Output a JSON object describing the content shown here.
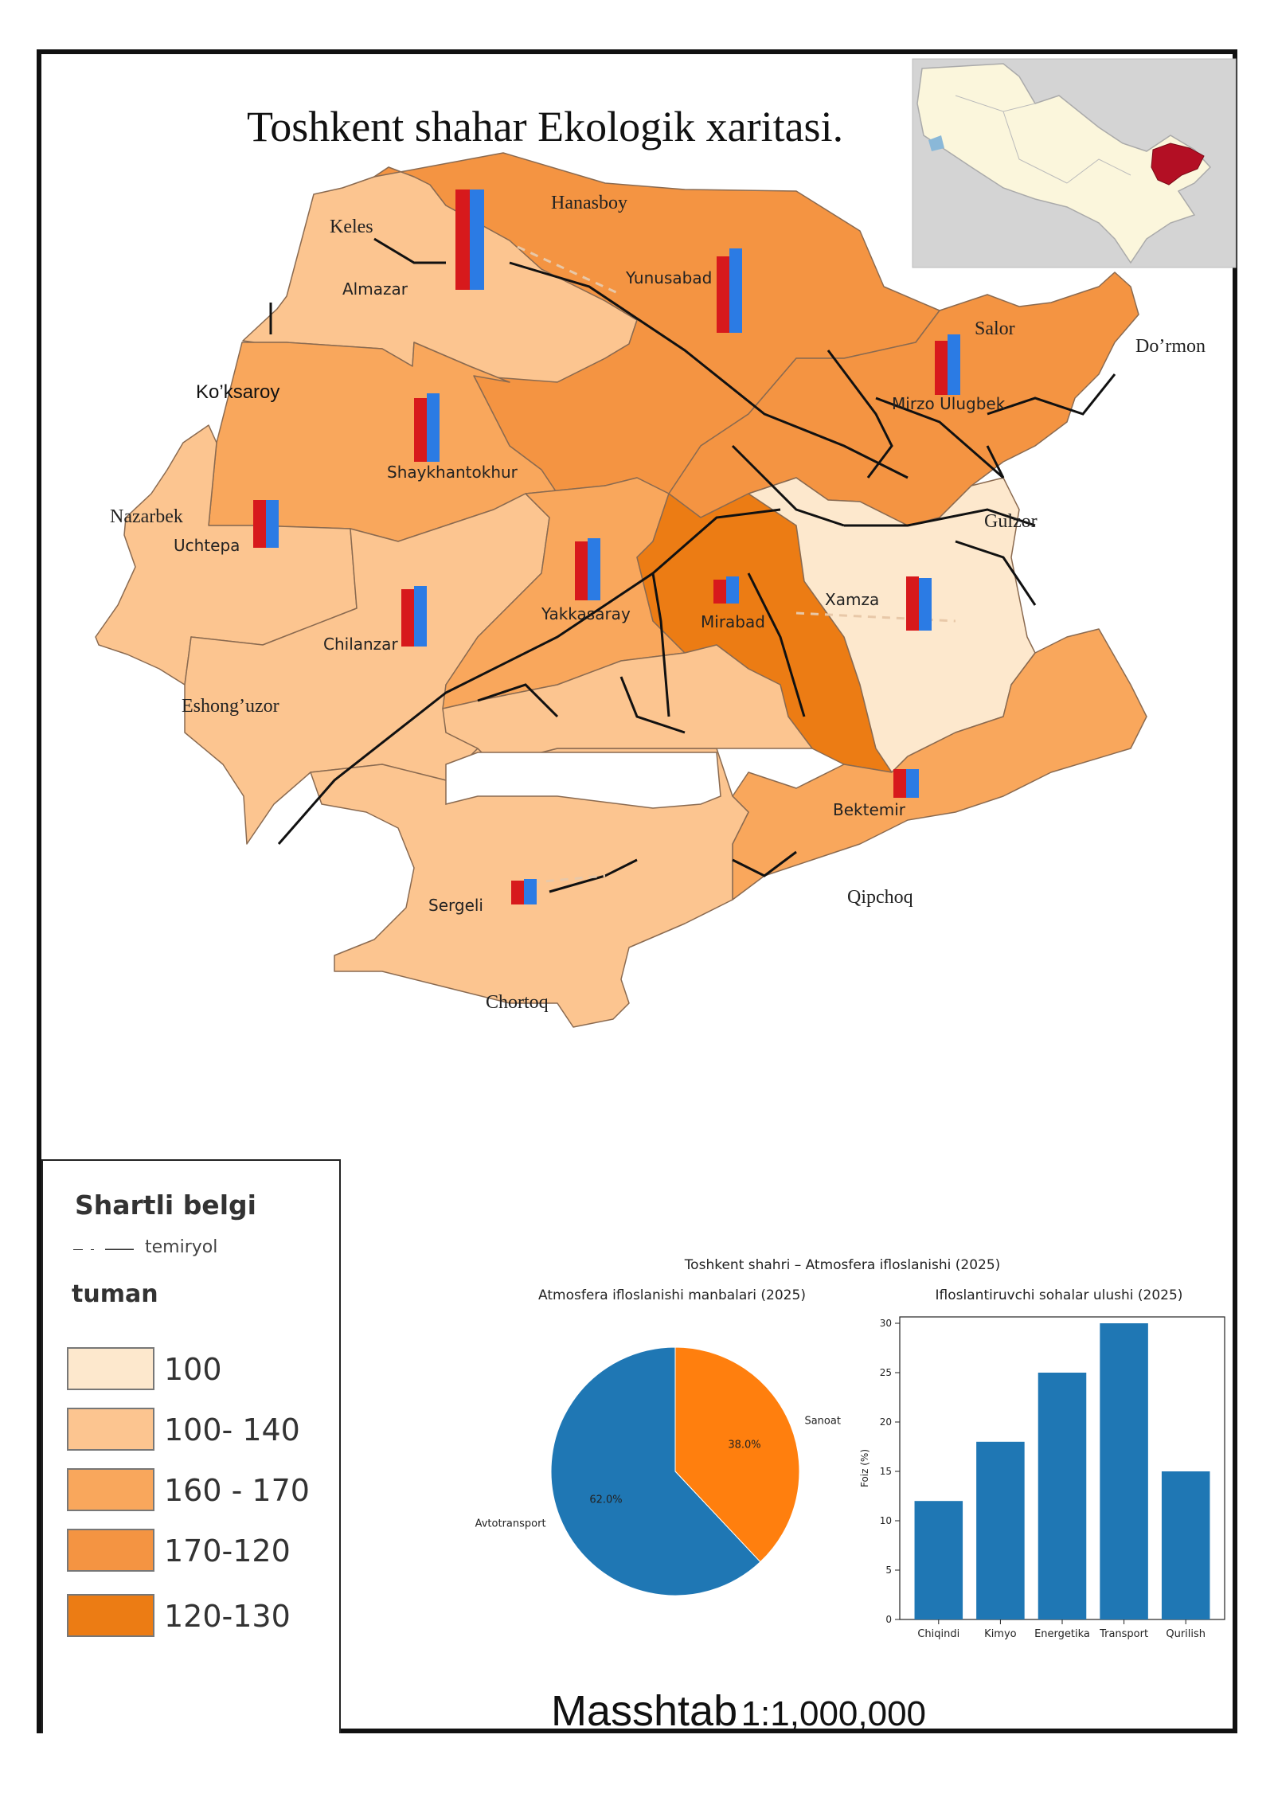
{
  "title": "Toshkent shahar Ekologik  xaritasi.",
  "colors": {
    "class_100": "#fde8cd",
    "class_100_140": "#fcc590",
    "class_160_170": "#f9a75c",
    "class_170_120": "#f49442",
    "class_120_130": "#ec7c14",
    "bar_red": "#d7191c",
    "bar_blue": "#2b7be4",
    "chart_blue": "#1f77b4",
    "chart_orange": "#ff7f0e",
    "inset_highlight": "#b30f24"
  },
  "districts": [
    {
      "id": "almazar",
      "label": "Almazar",
      "class": "100_140"
    },
    {
      "id": "yunusabad",
      "label": "Yunusabad",
      "class": "170_120"
    },
    {
      "id": "mirzo_ulugbek",
      "label": "Mirzo Ulugbek",
      "class": "170_120"
    },
    {
      "id": "shaykhantokhur",
      "label": "Shaykhantokhur",
      "class": "160_170"
    },
    {
      "id": "uchtepa",
      "label": "Uchtepa",
      "class": "100_140"
    },
    {
      "id": "chilanzar",
      "label": "Chilanzar",
      "class": "100_140"
    },
    {
      "id": "yakkasaray",
      "label": "Yakkasaray",
      "class": "160_170"
    },
    {
      "id": "mirabad",
      "label": "Mirabad",
      "class": "120_130"
    },
    {
      "id": "xamza",
      "label": "Xamza",
      "class": "100"
    },
    {
      "id": "bektemir",
      "label": "Bektemir",
      "class": "160_170"
    },
    {
      "id": "sergeli",
      "label": "Sergeli",
      "class": "100_140"
    }
  ],
  "surrounding_places": [
    "Keles",
    "Hanasboy",
    "Salor",
    "Do’rmon",
    "Ko’ksaroy",
    "Nazarbek",
    "Gulzor",
    "Eshong’uzor",
    "Qipchoq",
    "Chortoq"
  ],
  "legend": {
    "title": "Shartli belgi",
    "railway_label": "temiryol",
    "tuman_label": "tuman",
    "items": [
      {
        "label": "100",
        "color": "#fde8cd"
      },
      {
        "label": "100- 140",
        "color": "#fcc590"
      },
      {
        "label": "160 - 170",
        "color": "#f9a75c"
      },
      {
        "label": "170-120",
        "color": "#f49442"
      },
      {
        "label": "120-130",
        "color": "#ec7c14"
      }
    ]
  },
  "scale": {
    "prefix": "Masshtab",
    "value": "1:1,000,000"
  },
  "chart_data": [
    {
      "type": "pie",
      "suptitle": "Toshkent shahri – Atmosfera ifloslanishi (2025)",
      "title": "Atmosfera ifloslanishi manbalari (2025)",
      "slices": [
        {
          "label": "Sanoat",
          "value": 38.0,
          "pct_label": "38.0%",
          "color": "#ff7f0e"
        },
        {
          "label": "Avtotransport",
          "value": 62.0,
          "pct_label": "62.0%",
          "color": "#1f77b4"
        }
      ]
    },
    {
      "type": "bar",
      "title": "Ifloslantiruvchi sohalar ulushi (2025)",
      "categories": [
        "Chiqindi",
        "Kimyo",
        "Energetika",
        "Transport",
        "Qurilish"
      ],
      "values": [
        12,
        18,
        25,
        30,
        15
      ],
      "xlabel": "",
      "ylabel": "Foiz (%)",
      "ylim": [
        0,
        30
      ],
      "yticks": [
        "0",
        "5",
        "10",
        "15",
        "20",
        "25",
        "30"
      ],
      "color": "#1f77b4"
    }
  ]
}
